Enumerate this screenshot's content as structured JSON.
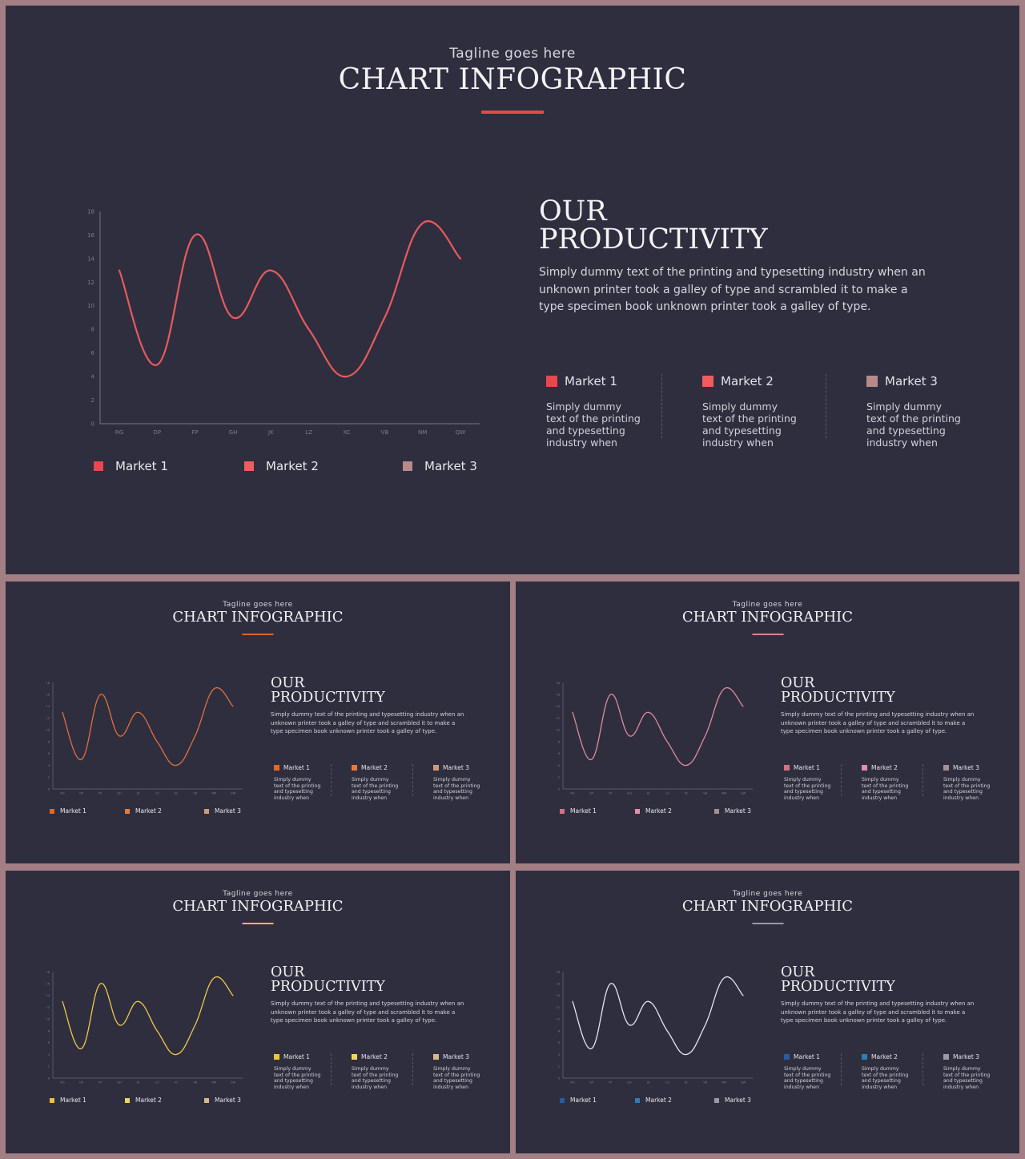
{
  "common": {
    "tagline": "Tagline goes here",
    "title": "CHART INFOGRAPHIC",
    "productivity_line1": "OUR",
    "productivity_line2": "PRODUCTIVITY",
    "description": "Simply dummy text of the printing and typesetting industry when an unknown printer took a galley of type and scrambled it to make a type specimen book unknown printer took a galley of type.",
    "market_labels": [
      "Market 1",
      "Market 2",
      "Market 3"
    ],
    "market_text": "Simply dummy text of the printing and typesetting industry when"
  },
  "chart_data": {
    "type": "line",
    "categories": [
      "RG",
      "DP",
      "FP",
      "GH",
      "JK",
      "LZ",
      "XC",
      "VB",
      "NM",
      "QW"
    ],
    "series": [
      {
        "values": [
          13,
          5,
          16,
          9,
          13,
          8,
          4,
          9,
          17,
          14
        ]
      }
    ],
    "ylim": [
      0,
      18
    ],
    "yticks": [
      0,
      2,
      4,
      6,
      8,
      10,
      12,
      14,
      16,
      18
    ],
    "grid": false,
    "legend": "bottom"
  },
  "themes": [
    {
      "id": "main",
      "line": "#e85a5e",
      "accent": "#e8474d",
      "markets": [
        "#e8474d",
        "#f05c5e",
        "#b8898b"
      ]
    },
    {
      "id": "orange",
      "line": "#e0703e",
      "accent": "#e0662e",
      "markets": [
        "#e6652a",
        "#eb7a3a",
        "#cf9a78"
      ]
    },
    {
      "id": "pink",
      "line": "#e08b9b",
      "accent": "#d9848f",
      "markets": [
        "#d9707f",
        "#e28eae",
        "#a58e96"
      ]
    },
    {
      "id": "yellow",
      "line": "#f2c84b",
      "accent": "#f2c233",
      "markets": [
        "#f4c330",
        "#f6d45c",
        "#d9b98a"
      ]
    },
    {
      "id": "gray",
      "line": "#e6e6ee",
      "accent": "#9a9aa6",
      "markets": [
        "#1f5ea8",
        "#2f7db6",
        "#9b9ba6"
      ]
    }
  ]
}
